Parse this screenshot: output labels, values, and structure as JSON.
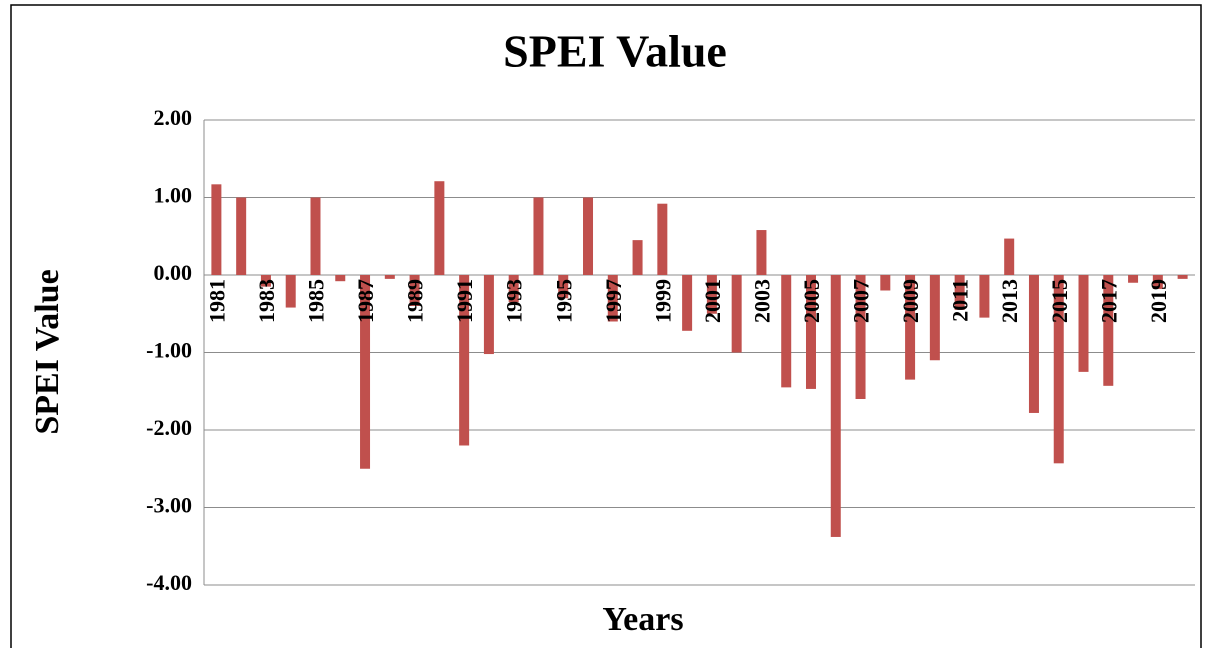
{
  "chart_data": {
    "type": "bar",
    "title": "SPEI Value",
    "x_label": "Years",
    "y_label": "SPEI Value",
    "categories": [
      "1981",
      null,
      "1983",
      null,
      "1985",
      null,
      "1987",
      null,
      "1989",
      null,
      "1991",
      null,
      "1993",
      null,
      "1995",
      null,
      "1997",
      null,
      "1999",
      null,
      "2001",
      null,
      "2003",
      null,
      "2005",
      null,
      "2007",
      null,
      "2009",
      null,
      "2011",
      null,
      "2013",
      null,
      "2015",
      null,
      "2017",
      null,
      "2019",
      null
    ],
    "values": [
      1.17,
      1.0,
      -0.15,
      -0.42,
      1.0,
      -0.08,
      -2.5,
      -0.05,
      -0.4,
      1.21,
      -2.2,
      -1.02,
      -0.35,
      1.0,
      -0.3,
      1.0,
      -0.6,
      0.45,
      0.92,
      -0.72,
      -0.5,
      -1.0,
      0.58,
      -1.45,
      -1.47,
      -3.38,
      -1.6,
      -0.2,
      -1.35,
      -1.1,
      -0.45,
      -0.55,
      0.47,
      -1.78,
      -2.43,
      -1.25,
      -1.43,
      -0.1,
      -0.18,
      -0.05
    ],
    "color": "#c0504d",
    "ylim": [
      -4,
      2
    ],
    "yticks": [
      {
        "value": -4,
        "label": "-4.00"
      },
      {
        "value": -3,
        "label": "-3.00"
      },
      {
        "value": -2,
        "label": "-2.00"
      },
      {
        "value": -1,
        "label": "-1.00"
      },
      {
        "value": 0,
        "label": "0.00"
      },
      {
        "value": 1,
        "label": "1.00"
      },
      {
        "value": 2,
        "label": "2.00"
      }
    ],
    "grid": true
  }
}
